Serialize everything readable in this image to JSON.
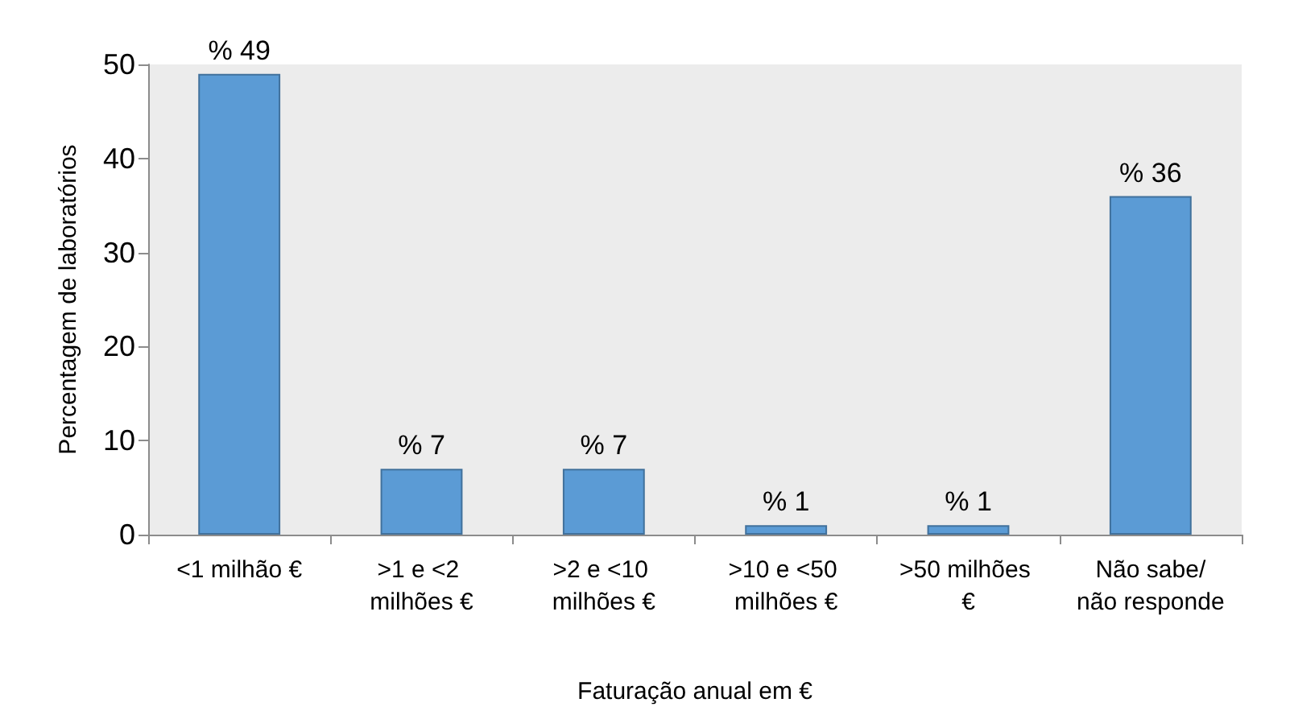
{
  "chart_data": {
    "type": "bar",
    "categories": [
      "<1 milhão €",
      ">1 e <2 milhões €",
      ">2 e <10 milhões €",
      ">10 e <50 milhões €",
      ">50 milhões €",
      "Não sabe/não responde"
    ],
    "values": [
      49,
      7,
      7,
      1,
      1,
      36
    ],
    "value_labels": [
      "% 49",
      "% 7",
      "% 7",
      "% 1",
      "% 1",
      "% 36"
    ],
    "color": "#5b9bd5",
    "xlabel": "Faturação anual em €",
    "ylabel": "Percentagem de laboratórios",
    "ylim": [
      0,
      50
    ],
    "yticks": [
      0,
      10,
      20,
      30,
      40,
      50
    ],
    "grid": false
  }
}
